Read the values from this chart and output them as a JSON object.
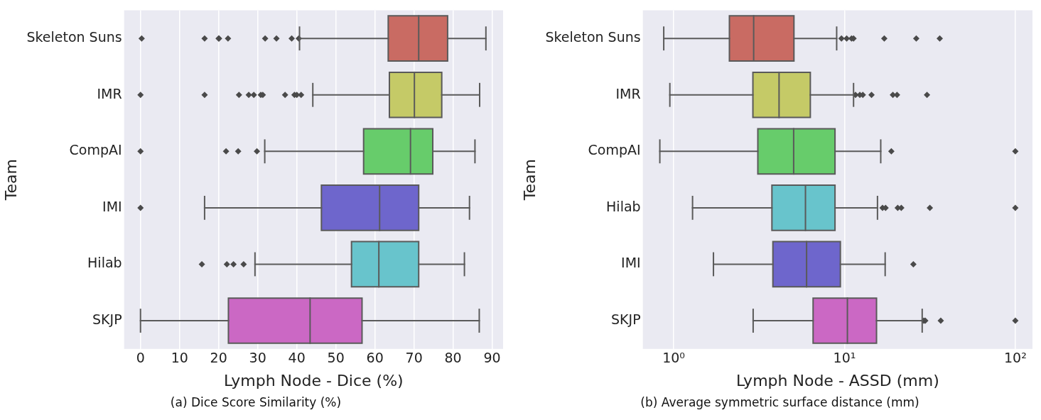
{
  "chart_data": [
    {
      "type": "box",
      "orientation": "horizontal",
      "xlabel": "Lymph Node - Dice (%)",
      "ylabel": "Team",
      "annotations": [
        "(a) Dice Score Similarity (%)"
      ],
      "grid": "x",
      "marker": "diamond",
      "categories": [
        "Skeleton Suns",
        "IMR",
        "CompAI",
        "IMI",
        "Hilab",
        "SKJP"
      ],
      "colors": [
        "#c96b63",
        "#c5ca67",
        "#67cc6b",
        "#6e66cc",
        "#68c4cc",
        "#cb68c4"
      ],
      "xlim": [
        -4.2,
        92.8
      ],
      "xticks": [
        0,
        10,
        20,
        30,
        40,
        50,
        60,
        70,
        80,
        90
      ],
      "boxes": [
        {
          "low": 40.7,
          "q1": 63.4,
          "median": 71.2,
          "q3": 78.6,
          "high": 88.4,
          "outliers": [
            0.3,
            16.4,
            20,
            20.1,
            22.4,
            31.9,
            34.8,
            38.7,
            40.5
          ]
        },
        {
          "low": 44.1,
          "q1": 63.7,
          "median": 70.1,
          "q3": 77.1,
          "high": 86.8,
          "outliers": [
            0,
            16.4,
            25.2,
            27.7,
            29,
            30.8,
            31.3,
            37,
            39.4,
            40,
            41.1
          ]
        },
        {
          "low": 31.8,
          "q1": 57.1,
          "median": 69.1,
          "q3": 74.8,
          "high": 85.6,
          "outliers": [
            0,
            21.9,
            25,
            29.8
          ]
        },
        {
          "low": 16.4,
          "q1": 46.3,
          "median": 61.2,
          "q3": 71.2,
          "high": 84.2,
          "outliers": [
            0
          ]
        },
        {
          "low": 29.3,
          "q1": 54,
          "median": 61,
          "q3": 71.2,
          "high": 82.9,
          "outliers": [
            15.7,
            22.1,
            23.8,
            26.4
          ]
        },
        {
          "low": 0,
          "q1": 22.5,
          "median": 43.4,
          "q3": 56.7,
          "high": 86.7
        }
      ]
    },
    {
      "type": "box",
      "orientation": "horizontal",
      "log": "x",
      "xlabel": "Lymph Node - ASSD (mm)",
      "ylabel": "Team",
      "annotations": [
        "(b) Average symmetric surface distance (mm)"
      ],
      "grid": "x",
      "marker": "diamond",
      "categories": [
        "Skeleton Suns",
        "IMR",
        "CompAI",
        "Hilab",
        "IMI",
        "SKJP"
      ],
      "colors": [
        "#c96b63",
        "#c5ca67",
        "#67cc6b",
        "#68c4cc",
        "#6e66cc",
        "#cb68c4"
      ],
      "xlim": [
        0.66,
        126
      ],
      "xticks": [
        {
          "value": 1,
          "label": "10⁰"
        },
        {
          "value": 10,
          "label": "10¹"
        },
        {
          "value": 100,
          "label": "10²"
        }
      ],
      "boxes": [
        {
          "low": 0.875,
          "q1": 2.12,
          "median": 2.94,
          "q3": 5.06,
          "high": 9.0,
          "outliers": [
            9.6,
            10.3,
            11.0,
            11.3,
            17.1,
            26.3,
            36.1
          ]
        },
        {
          "low": 0.95,
          "q1": 2.91,
          "median": 4.14,
          "q3": 6.31,
          "high": 11.3,
          "outliers": [
            11.6,
            12.3,
            12.8,
            14.4,
            19.2,
            20.3,
            30.4
          ]
        },
        {
          "low": 0.83,
          "q1": 3.11,
          "median": 5.04,
          "q3": 8.8,
          "high": 16.3,
          "outliers": [
            18.8,
            100
          ]
        },
        {
          "low": 1.29,
          "q1": 3.76,
          "median": 5.91,
          "q3": 8.8,
          "high": 15.6,
          "outliers": [
            16.7,
            17.4,
            20.5,
            21.5,
            31.6,
            100
          ]
        },
        {
          "low": 1.71,
          "q1": 3.81,
          "median": 6.0,
          "q3": 9.46,
          "high": 17.3,
          "outliers": [
            25.3
          ]
        },
        {
          "low": 2.92,
          "q1": 6.55,
          "median": 10.4,
          "q3": 15.4,
          "high": 28.5,
          "outliers": [
            29.1,
            29.7,
            36.6,
            100
          ]
        }
      ]
    }
  ]
}
